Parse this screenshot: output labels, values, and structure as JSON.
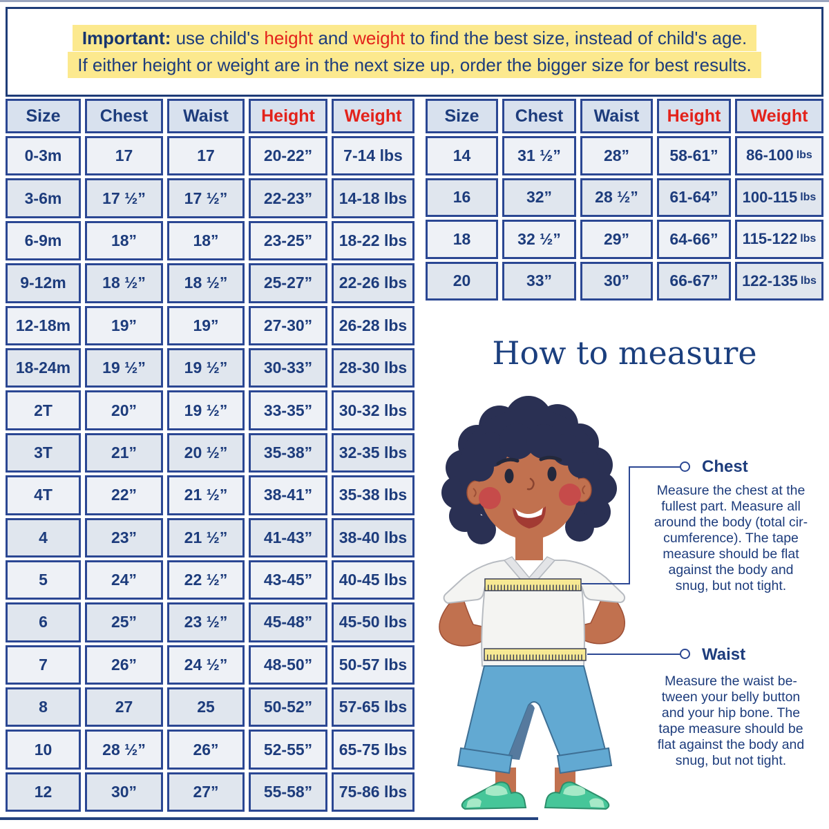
{
  "banner": {
    "line1_lead": "Important:",
    "line1_t1": " use child's ",
    "line1_red1": "height",
    "line1_t2": " and ",
    "line1_red2": "weight",
    "line1_t3": " to find the best size, instead of child's age.",
    "line2": "If either height or weight are in the next size up, order the bigger size for best results."
  },
  "size_tables": {
    "headers": [
      "Size",
      "Chest",
      "Waist",
      "Height",
      "Weight"
    ],
    "red_header_indices": [
      3,
      4
    ],
    "left_rows": [
      [
        "0-3m",
        "17",
        "17",
        "20-22”",
        "7-14 lbs"
      ],
      [
        "3-6m",
        "17 ½”",
        "17 ½”",
        "22-23”",
        "14-18 lbs"
      ],
      [
        "6-9m",
        "18”",
        "18”",
        "23-25”",
        "18-22 lbs"
      ],
      [
        "9-12m",
        "18 ½”",
        "18 ½”",
        "25-27”",
        "22-26 lbs"
      ],
      [
        "12-18m",
        "19”",
        "19”",
        "27-30”",
        "26-28 lbs"
      ],
      [
        "18-24m",
        "19 ½”",
        "19 ½”",
        "30-33”",
        "28-30 lbs"
      ],
      [
        "2T",
        "20”",
        "19 ½”",
        "33-35”",
        "30-32 lbs"
      ],
      [
        "3T",
        "21”",
        "20 ½”",
        "35-38”",
        "32-35 lbs"
      ],
      [
        "4T",
        "22”",
        "21 ½”",
        "38-41”",
        "35-38 lbs"
      ],
      [
        "4",
        "23”",
        "21 ½”",
        "41-43”",
        "38-40 lbs"
      ],
      [
        "5",
        "24”",
        "22 ½”",
        "43-45”",
        "40-45 lbs"
      ],
      [
        "6",
        "25”",
        "23 ½”",
        "45-48”",
        "45-50 lbs"
      ],
      [
        "7",
        "26”",
        "24 ½”",
        "48-50”",
        "50-57 lbs"
      ],
      [
        "8",
        "27",
        "25",
        "50-52”",
        "57-65 lbs"
      ],
      [
        "10",
        "28 ½”",
        "26”",
        "52-55”",
        "65-75 lbs"
      ],
      [
        "12",
        "30”",
        "27”",
        "55-58”",
        "75-86 lbs"
      ]
    ],
    "right_rows": [
      [
        "14",
        "31 ½”",
        "28”",
        "58-61”",
        "86-100 lbs"
      ],
      [
        "16",
        "32”",
        "28 ½”",
        "61-64”",
        "100-115 lbs"
      ],
      [
        "18",
        "32 ½”",
        "29”",
        "64-66”",
        "115-122 lbs"
      ],
      [
        "20",
        "33”",
        "30”",
        "66-67”",
        "122-135 lbs"
      ]
    ]
  },
  "how_to_measure": {
    "title": "How to measure",
    "chest": {
      "label": "Chest",
      "text": "Measure the chest at the\nfullest part. Measure all\naround the body (total cir-\ncumference). The tape\nmeasure should be flat\nagainst the body and\nsnug, but not tight."
    },
    "waist": {
      "label": "Waist",
      "text": "Measure the waist be-\ntween your belly button\nand your hip bone. The\ntape measure should be\nflat against the body and\nsnug, but not tight."
    }
  },
  "illustration": "child-with-measuring-tapes-at-chest-and-waist",
  "colors": {
    "navy_text": "#1d3c7c",
    "table_border": "#2b4793",
    "red_accent": "#e3221b",
    "highlight_yellow": "#fce98e",
    "header_cell_bg": "#d8e1ee",
    "row_light": "#eef1f6",
    "row_dark": "#e0e6ee",
    "tape_yellow": "#f7e993",
    "skin": "#c1714f",
    "hair": "#2a3053",
    "jeans_blue": "#62a9d2",
    "shoe_green": "#46c699"
  }
}
